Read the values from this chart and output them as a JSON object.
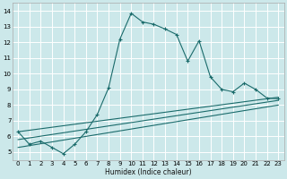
{
  "xlabel": "Humidex (Indice chaleur)",
  "bg_color": "#cce8ea",
  "grid_color": "#ffffff",
  "line_color": "#1a6b6b",
  "xlim": [
    -0.5,
    23.5
  ],
  "ylim": [
    4.5,
    14.5
  ],
  "xticks": [
    0,
    1,
    2,
    3,
    4,
    5,
    6,
    7,
    8,
    9,
    10,
    11,
    12,
    13,
    14,
    15,
    16,
    17,
    18,
    19,
    20,
    21,
    22,
    23
  ],
  "yticks": [
    5,
    6,
    7,
    8,
    9,
    10,
    11,
    12,
    13,
    14
  ],
  "series1_x": [
    0,
    1,
    2,
    3,
    4,
    5,
    6,
    7,
    8,
    9,
    10,
    11,
    12,
    13,
    14,
    15,
    16,
    17,
    18,
    19,
    20,
    21,
    22,
    23
  ],
  "series1_y": [
    6.3,
    5.5,
    5.7,
    5.3,
    4.9,
    5.5,
    6.3,
    7.4,
    9.1,
    12.2,
    13.85,
    13.3,
    13.15,
    12.85,
    12.5,
    10.8,
    12.1,
    9.8,
    9.0,
    8.85,
    9.4,
    9.0,
    8.45,
    8.4
  ],
  "series2_x": [
    0,
    23
  ],
  "series2_y": [
    6.3,
    8.5
  ],
  "series3_x": [
    0,
    23
  ],
  "series3_y": [
    5.8,
    8.3
  ],
  "series4_x": [
    0,
    23
  ],
  "series4_y": [
    5.3,
    8.0
  ]
}
